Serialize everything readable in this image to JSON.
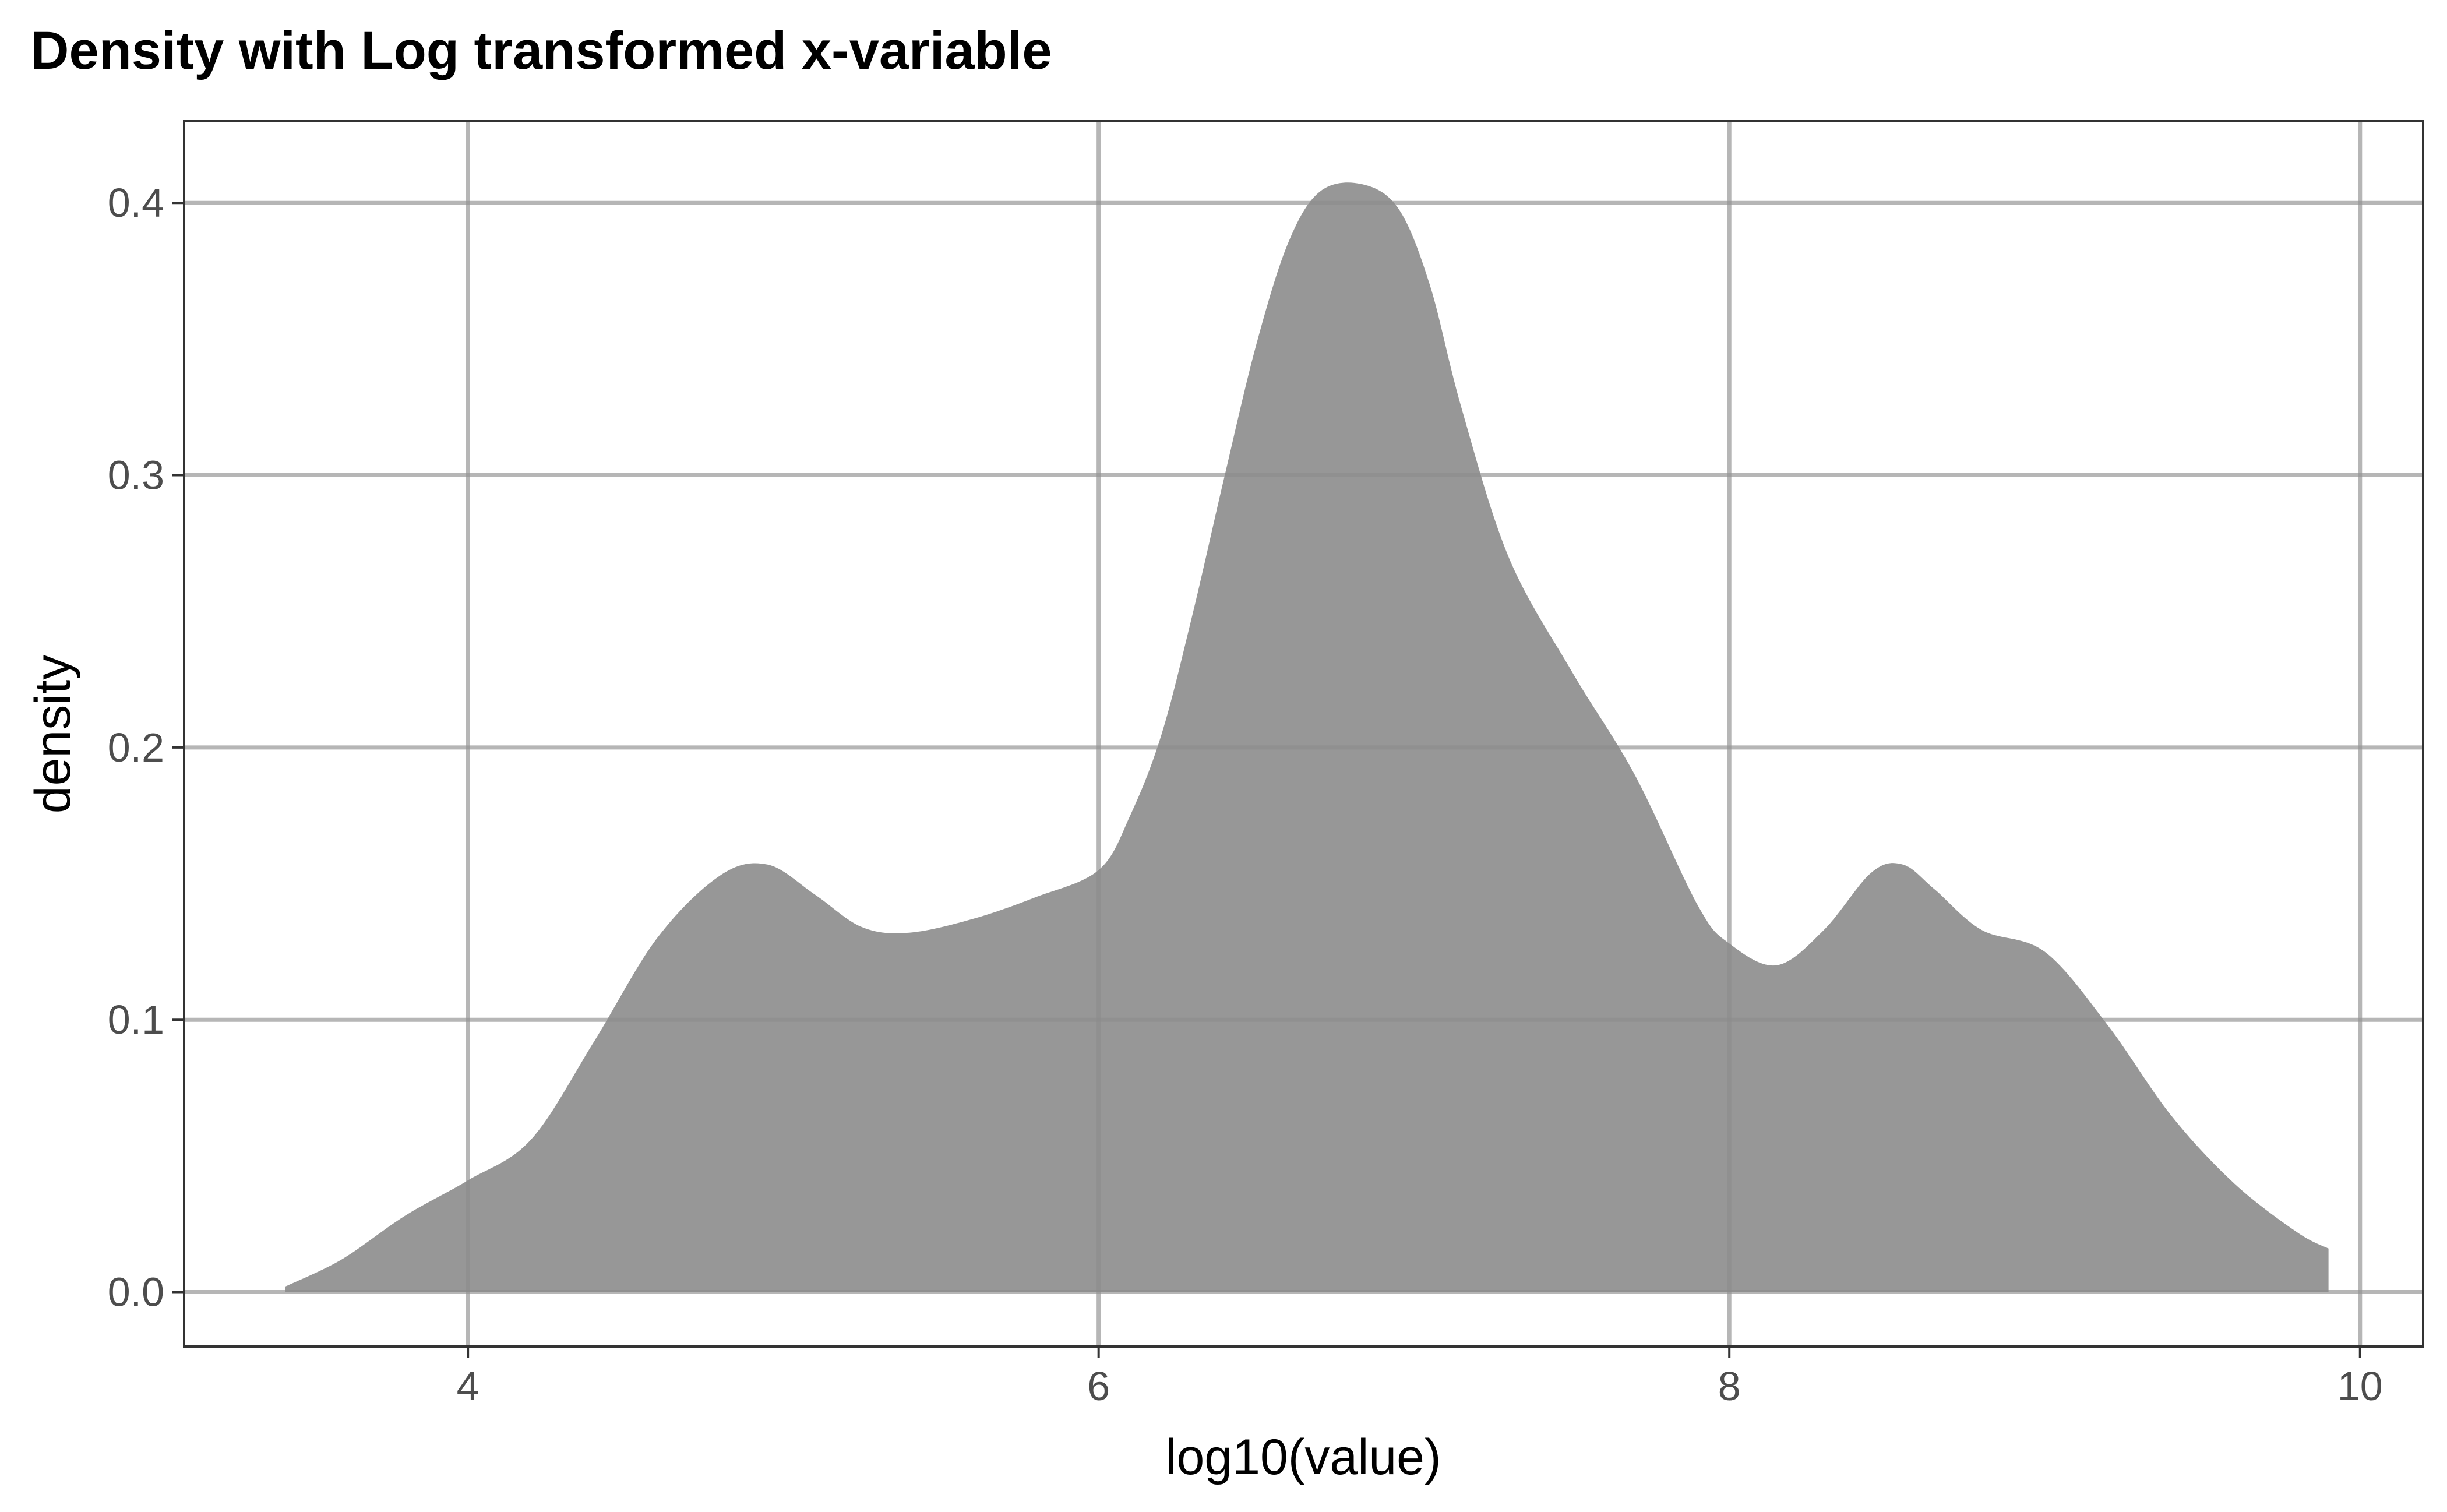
{
  "chart_data": {
    "type": "area",
    "title": "Density with Log transformed x-variable",
    "xlabel": "log10(value)",
    "ylabel": "density",
    "xlim": [
      3.1,
      10.2
    ],
    "ylim": [
      -0.02,
      0.43
    ],
    "x_ticks": [
      4,
      6,
      8,
      10
    ],
    "x_tick_labels": [
      "4",
      "6",
      "8",
      "10"
    ],
    "y_ticks": [
      0.0,
      0.1,
      0.2,
      0.3,
      0.4
    ],
    "y_tick_labels": [
      "0.0",
      "0.1",
      "0.2",
      "0.3",
      "0.4"
    ],
    "grid": true,
    "legend": "none",
    "fill_color": "#959595",
    "series": [
      {
        "x": [
          3.42,
          3.6,
          3.8,
          4.0,
          4.2,
          4.4,
          4.6,
          4.8,
          4.95,
          5.1,
          5.25,
          5.4,
          5.6,
          5.8,
          6.0,
          6.1,
          6.2,
          6.3,
          6.4,
          6.5,
          6.6,
          6.7,
          6.83,
          6.95,
          7.05,
          7.15,
          7.3,
          7.5,
          7.7,
          7.9,
          8.0,
          8.15,
          8.3,
          8.45,
          8.55,
          8.65,
          8.8,
          9.0,
          9.2,
          9.4,
          9.6,
          9.8,
          9.9
        ],
        "y": [
          0.002,
          0.012,
          0.028,
          0.041,
          0.056,
          0.092,
          0.13,
          0.153,
          0.157,
          0.146,
          0.134,
          0.132,
          0.137,
          0.145,
          0.155,
          0.175,
          0.205,
          0.25,
          0.3,
          0.348,
          0.385,
          0.404,
          0.407,
          0.398,
          0.37,
          0.325,
          0.27,
          0.228,
          0.19,
          0.142,
          0.128,
          0.12,
          0.133,
          0.154,
          0.157,
          0.148,
          0.133,
          0.125,
          0.098,
          0.065,
          0.04,
          0.022,
          0.016
        ]
      }
    ]
  }
}
